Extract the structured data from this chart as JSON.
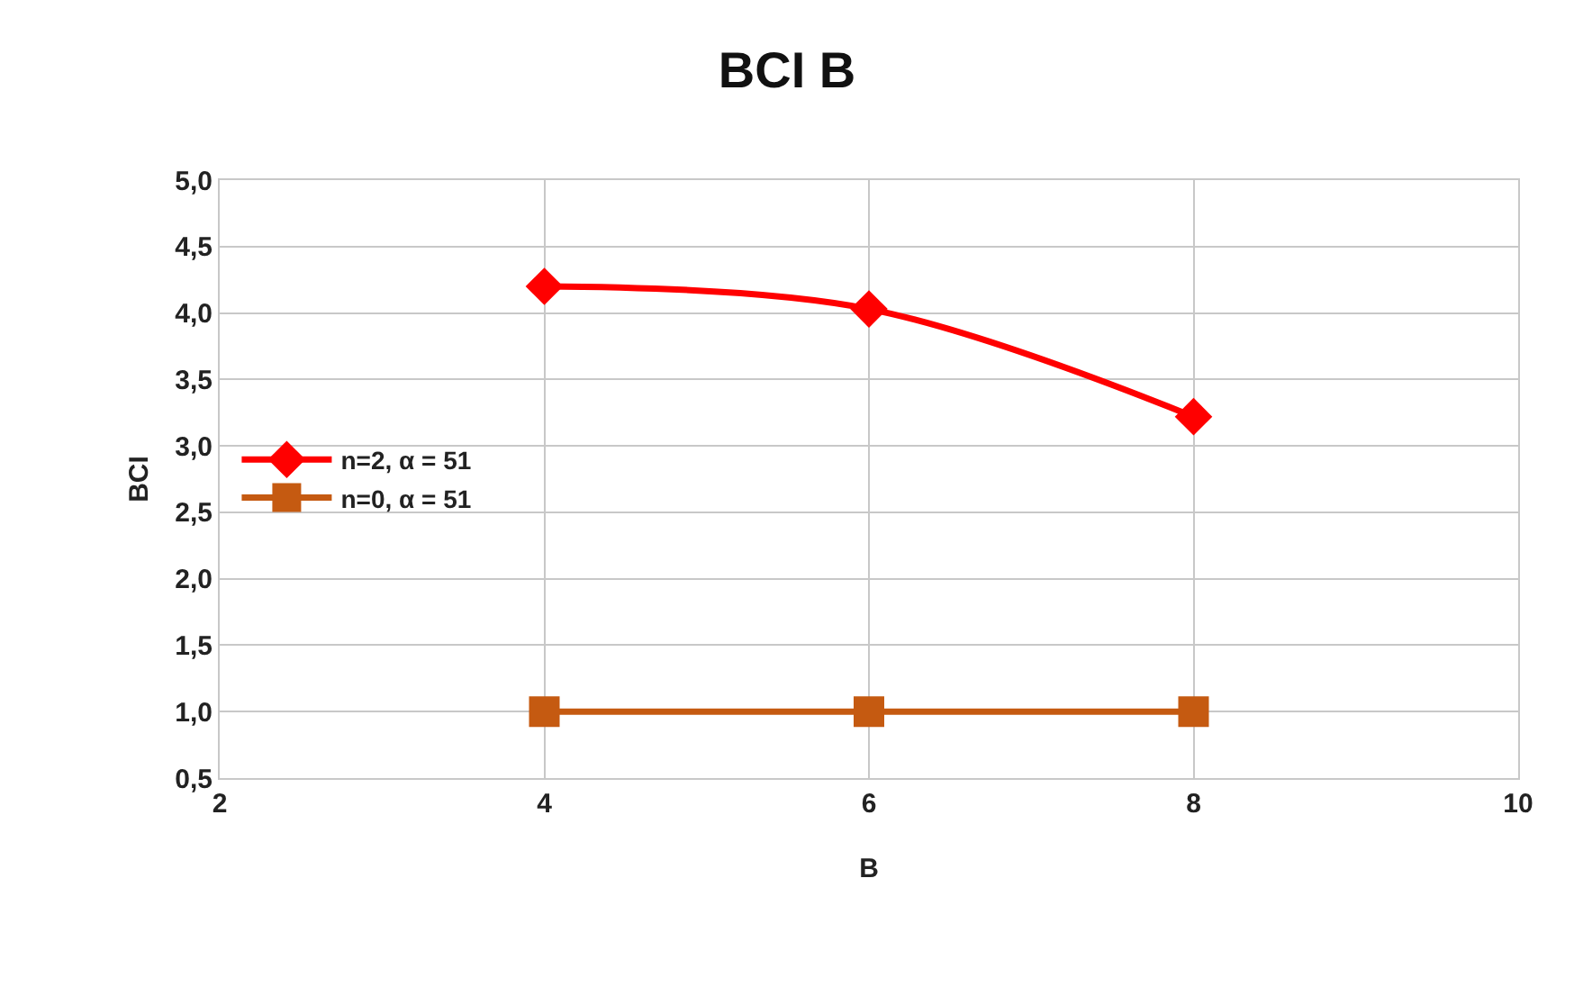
{
  "chart_data": {
    "type": "line",
    "title": "BCI B",
    "xlabel": "B",
    "ylabel": "BCI",
    "x": [
      4,
      6,
      8
    ],
    "series": [
      {
        "name": "n=2, α = 51",
        "color": "#ff0000",
        "values": [
          4.2,
          4.03,
          3.22
        ],
        "marker": "diamond"
      },
      {
        "name": "n=0, α = 51",
        "color": "#c55a11",
        "values": [
          1,
          1,
          1
        ],
        "marker": "square"
      }
    ],
    "xlim": [
      2,
      10
    ],
    "xticks": [
      2,
      4,
      6,
      8,
      10
    ],
    "ylim": [
      0.5,
      5
    ],
    "yticks": [
      {
        "value": 0.5,
        "label": "0,5"
      },
      {
        "value": 1,
        "label": "1,0"
      },
      {
        "value": 1.5,
        "label": "1,5"
      },
      {
        "value": 2,
        "label": "2,0"
      },
      {
        "value": 2.5,
        "label": "2,5"
      },
      {
        "value": 3,
        "label": "3,0"
      },
      {
        "value": 3.5,
        "label": "3,5"
      },
      {
        "value": 4,
        "label": "4,0"
      },
      {
        "value": 4.5,
        "label": "4,5"
      },
      {
        "value": 5,
        "label": "5,0"
      }
    ],
    "grid": true,
    "legend": "left",
    "line_style": "solid"
  }
}
